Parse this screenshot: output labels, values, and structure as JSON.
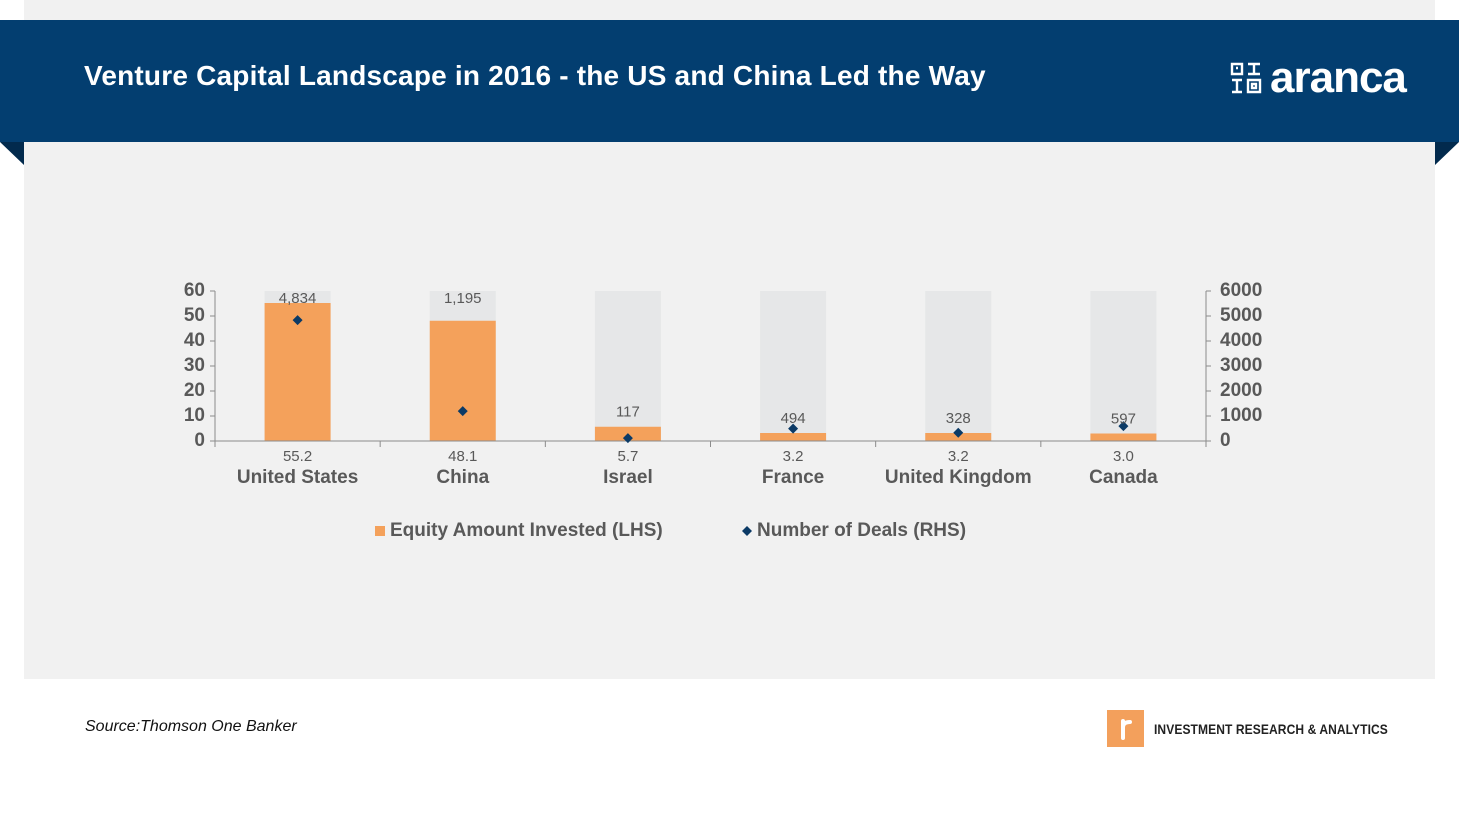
{
  "header": {
    "title": "Venture Capital Landscape in 2016 - the US and China Led the Way",
    "logo_text": "aranca"
  },
  "chart_data": {
    "type": "bar",
    "categories": [
      "United States",
      "China",
      "Israel",
      "France",
      "United Kingdom",
      "Canada"
    ],
    "series": [
      {
        "name": "Equity Amount Invested (LHS)",
        "axis": "left",
        "mark": "bar",
        "color": "#f4a15b",
        "values": [
          55.2,
          48.1,
          5.7,
          3.2,
          3.2,
          3.0
        ],
        "labels": [
          "55.2",
          "48.1",
          "5.7",
          "3.2",
          "3.2",
          "3.0"
        ]
      },
      {
        "name": "Number of Deals (RHS)",
        "axis": "right",
        "mark": "diamond",
        "color": "#0b3a66",
        "values": [
          4834,
          1195,
          117,
          494,
          328,
          597
        ],
        "labels": [
          "4,834",
          "1,195",
          "117",
          "494",
          "328",
          "597"
        ]
      }
    ],
    "y_left": {
      "min": 0,
      "max": 60,
      "ticks": [
        "0",
        "10",
        "20",
        "30",
        "40",
        "50",
        "60"
      ]
    },
    "y_right": {
      "min": 0,
      "max": 6000,
      "ticks": [
        "0",
        "1000",
        "2000",
        "3000",
        "4000",
        "5000",
        "6000"
      ]
    },
    "background_bar_color": "#e6e7e8",
    "legend_position": "bottom",
    "grid": false
  },
  "footer": {
    "source": "Source:Thomson One Banker",
    "tagline": "INVESTMENT RESEARCH & ANALYTICS"
  }
}
